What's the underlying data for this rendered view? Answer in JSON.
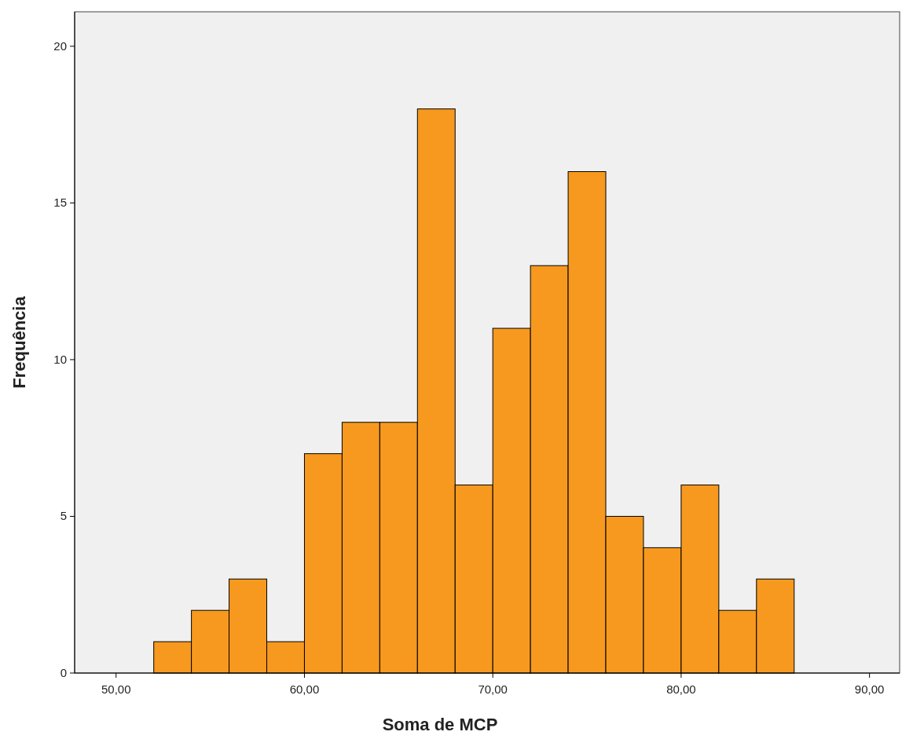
{
  "chart_data": {
    "type": "histogram",
    "xlabel": "Soma de MCP",
    "ylabel": "Frequência",
    "bins": [
      52,
      54,
      56,
      58,
      60,
      62,
      64,
      66,
      68,
      70,
      72,
      74,
      76,
      78,
      80,
      82,
      84,
      86
    ],
    "values": [
      1,
      2,
      3,
      1,
      7,
      8,
      8,
      18,
      6,
      11,
      13,
      16,
      5,
      4,
      6,
      2,
      3
    ],
    "color": "#f7991e",
    "xlim": [
      47.8,
      91.6
    ],
    "xticks": [
      {
        "value": 50,
        "label": "50,00"
      },
      {
        "value": 60,
        "label": "60,00"
      },
      {
        "value": 70,
        "label": "70,00"
      },
      {
        "value": 80,
        "label": "80,00"
      },
      {
        "value": 90,
        "label": "90,00"
      }
    ],
    "ylim": [
      0,
      21.1
    ],
    "yticks": [
      0,
      5,
      10,
      15,
      20
    ],
    "grid": false
  }
}
